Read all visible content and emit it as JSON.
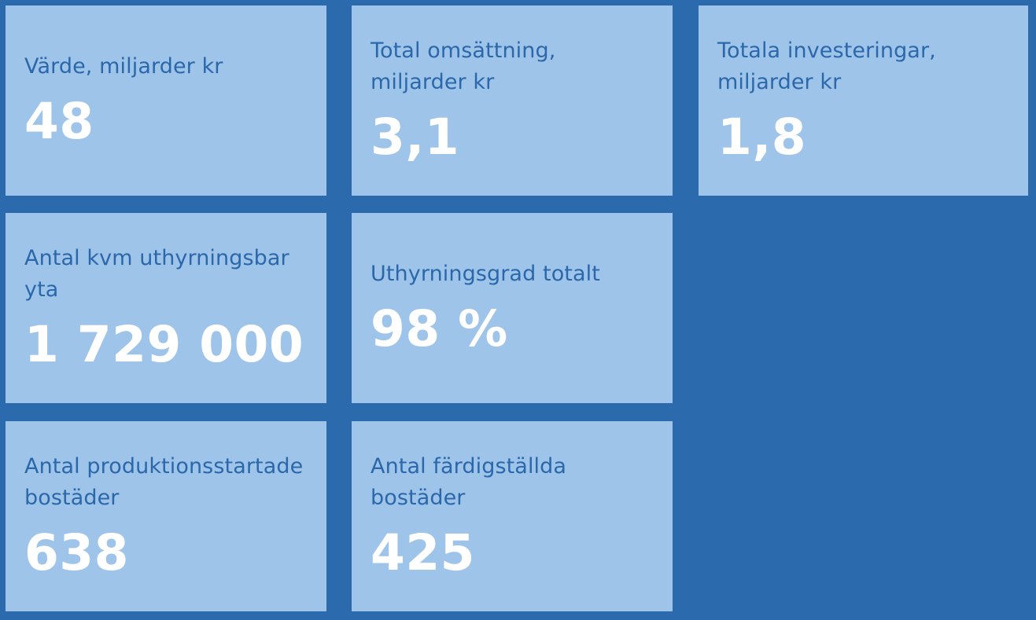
{
  "colors": {
    "background": "#2a6aad",
    "tile": "#9fc4e9",
    "label": "#2a68ab",
    "value": "#ffffff"
  },
  "tiles": [
    {
      "label": "Värde, miljarder kr",
      "value": "48"
    },
    {
      "label": "Total omsättning, miljarder kr",
      "value": "3,1"
    },
    {
      "label": "Totala investeringar, miljarder kr",
      "value": "1,8"
    },
    {
      "label": "Antal kvm uthyrningsbar yta",
      "value": "1 729 000"
    },
    {
      "label": "Uthyrningsgrad totalt",
      "value": "98 %"
    },
    {
      "label": "Antal produktionsstartade bostäder",
      "value": "638"
    },
    {
      "label": "Antal färdigställda bostäder",
      "value": "425"
    }
  ]
}
